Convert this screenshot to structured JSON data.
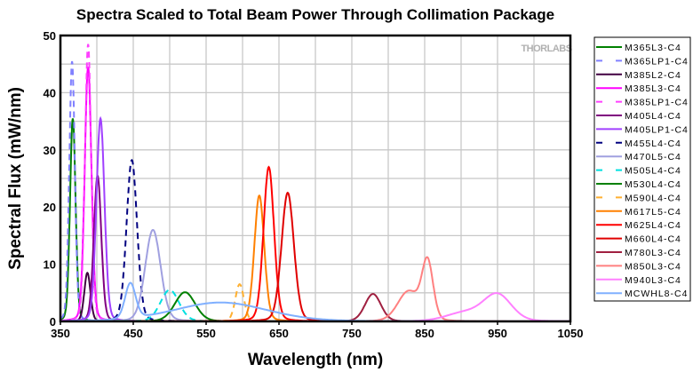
{
  "chart_data": {
    "type": "line",
    "title": "Spectra Scaled to Total Beam Power Through Collimation Package",
    "xlabel": "Wavelength (nm)",
    "ylabel": "Spectral Flux (mW/nm)",
    "xlim": [
      350,
      1050
    ],
    "ylim": [
      0,
      50
    ],
    "xticks": [
      350,
      450,
      550,
      650,
      750,
      850,
      950,
      1050
    ],
    "yticks": [
      0,
      10,
      20,
      30,
      40,
      50
    ],
    "grid": true,
    "legend_placement": "right-outside",
    "watermark": "THORLABS",
    "series": [
      {
        "name": "M365L3-C4",
        "color": "#008000",
        "dash": false,
        "peaks": [
          {
            "nm": 367,
            "value": 35.5,
            "fwhm": 9
          }
        ]
      },
      {
        "name": "M365LP1-C4",
        "color": "#8080ff",
        "dash": true,
        "peaks": [
          {
            "nm": 366,
            "value": 45.5,
            "fwhm": 9
          }
        ]
      },
      {
        "name": "M385L2-C4",
        "color": "#400040",
        "dash": false,
        "peaks": [
          {
            "nm": 387,
            "value": 8.5,
            "fwhm": 10
          }
        ]
      },
      {
        "name": "M385L3-C4",
        "color": "#ff00ff",
        "dash": false,
        "peaks": [
          {
            "nm": 388,
            "value": 44.5,
            "fwhm": 11
          }
        ]
      },
      {
        "name": "M385LP1-C4",
        "color": "#ff40ff",
        "dash": true,
        "peaks": [
          {
            "nm": 388,
            "value": 48.5,
            "fwhm": 10
          }
        ]
      },
      {
        "name": "M405L4-C4",
        "color": "#800080",
        "dash": false,
        "peaks": [
          {
            "nm": 401,
            "value": 25.5,
            "fwhm": 12
          }
        ]
      },
      {
        "name": "M405LP1-C4",
        "color": "#a040ff",
        "dash": false,
        "peaks": [
          {
            "nm": 405,
            "value": 35.5,
            "fwhm": 13
          }
        ]
      },
      {
        "name": "M455L4-C4",
        "color": "#000080",
        "dash": true,
        "peaks": [
          {
            "nm": 448,
            "value": 28.2,
            "fwhm": 17
          }
        ]
      },
      {
        "name": "M470L5-C4",
        "color": "#a0a0e0",
        "dash": false,
        "peaks": [
          {
            "nm": 477,
            "value": 16,
            "fwhm": 25
          }
        ]
      },
      {
        "name": "M505L4-C4",
        "color": "#00e0e0",
        "dash": true,
        "peaks": [
          {
            "nm": 500,
            "value": 5.5,
            "fwhm": 30
          }
        ]
      },
      {
        "name": "M530L4-C4",
        "color": "#008000",
        "dash": false,
        "peaks": [
          {
            "nm": 521,
            "value": 5.1,
            "fwhm": 33
          }
        ]
      },
      {
        "name": "M590L4-C4",
        "color": "#ffb030",
        "dash": true,
        "peaks": [
          {
            "nm": 596,
            "value": 6.5,
            "fwhm": 14
          }
        ]
      },
      {
        "name": "M617L5-C4",
        "color": "#ff8000",
        "dash": false,
        "peaks": [
          {
            "nm": 623,
            "value": 22,
            "fwhm": 16
          }
        ]
      },
      {
        "name": "M625L4-C4",
        "color": "#ff0000",
        "dash": false,
        "peaks": [
          {
            "nm": 636,
            "value": 27,
            "fwhm": 17
          }
        ]
      },
      {
        "name": "M660L4-C4",
        "color": "#e00000",
        "dash": false,
        "peaks": [
          {
            "nm": 662,
            "value": 22.5,
            "fwhm": 20
          }
        ]
      },
      {
        "name": "M780L3-C4",
        "color": "#a02040",
        "dash": false,
        "peaks": [
          {
            "nm": 779,
            "value": 4.8,
            "fwhm": 26
          }
        ]
      },
      {
        "name": "M850L3-C4",
        "color": "#ff8080",
        "dash": false,
        "peaks": [
          {
            "nm": 854,
            "value": 10,
            "fwhm": 18
          },
          {
            "nm": 828,
            "value": 5.2,
            "fwhm": 35
          }
        ]
      },
      {
        "name": "M940L3-C4",
        "color": "#ff80ff",
        "dash": false,
        "peaks": [
          {
            "nm": 950,
            "value": 4.6,
            "fwhm": 45
          },
          {
            "nm": 905,
            "value": 1.5,
            "fwhm": 60
          }
        ]
      },
      {
        "name": "MCWHL8-C4",
        "color": "#80b0ff",
        "dash": false,
        "peaks": [
          {
            "nm": 446,
            "value": 6.2,
            "fwhm": 17
          },
          {
            "nm": 570,
            "value": 3.3,
            "fwhm": 150
          }
        ]
      }
    ]
  }
}
